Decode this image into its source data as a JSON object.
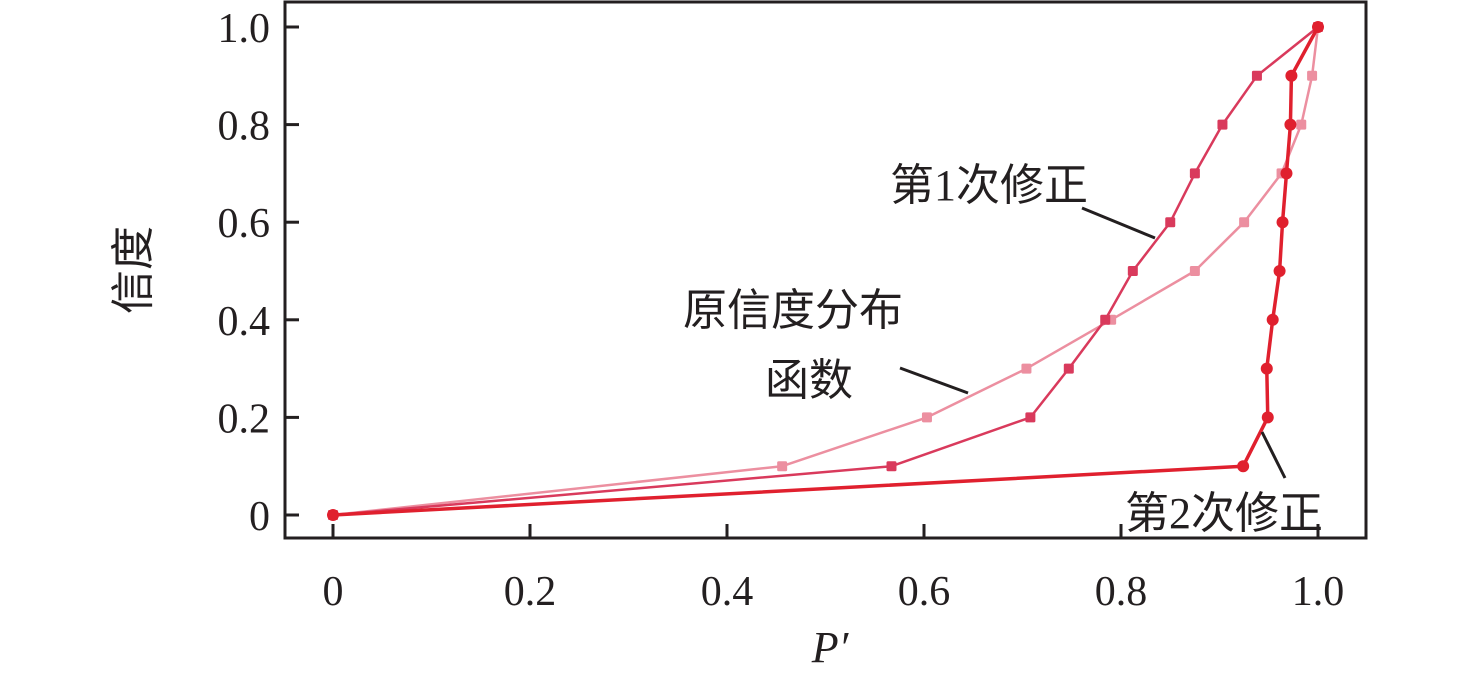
{
  "chart_data": {
    "type": "line",
    "title": "",
    "xlabel": "P′",
    "ylabel": "信度",
    "xlim": [
      0,
      1.0
    ],
    "ylim": [
      0,
      1.0
    ],
    "x_ticks": [
      "0",
      "0.2",
      "0.4",
      "0.6",
      "0.8",
      "1.0"
    ],
    "x_tick_values": [
      0,
      0.2,
      0.4,
      0.6,
      0.8,
      1.0
    ],
    "y_ticks": [
      "0",
      "0.2",
      "0.4",
      "0.6",
      "0.8",
      "1.0"
    ],
    "y_tick_values": [
      0,
      0.2,
      0.4,
      0.6,
      0.8,
      1.0
    ],
    "grid": false,
    "legend": "none (inline annotations)",
    "series": [
      {
        "name": "原信度分布函数",
        "color": "#ec8fa0",
        "x": [
          0,
          0.456,
          0.603,
          0.704,
          0.79,
          0.875,
          0.925,
          0.963,
          0.983,
          0.994,
          1.0
        ],
        "y": [
          0,
          0.1,
          0.2,
          0.3,
          0.4,
          0.5,
          0.6,
          0.7,
          0.8,
          0.9,
          1.0
        ]
      },
      {
        "name": "第1次修正",
        "color": "#d93a5c",
        "x": [
          0,
          0.567,
          0.708,
          0.747,
          0.784,
          0.812,
          0.85,
          0.875,
          0.903,
          0.938,
          1.0
        ],
        "y": [
          0,
          0.1,
          0.2,
          0.3,
          0.4,
          0.5,
          0.6,
          0.7,
          0.8,
          0.9,
          1.0
        ]
      },
      {
        "name": "第2次修正",
        "color": "#e0202e",
        "x": [
          0,
          0.924,
          0.949,
          0.948,
          0.954,
          0.961,
          0.964,
          0.968,
          0.972,
          0.973,
          1.0
        ],
        "y": [
          0,
          0.1,
          0.2,
          0.3,
          0.4,
          0.5,
          0.6,
          0.7,
          0.8,
          0.9,
          1.0
        ]
      }
    ],
    "annotations": {
      "first": "第1次修正",
      "original_line1": "原信度分布",
      "original_line2": "函数",
      "second": "第2次修正"
    }
  }
}
